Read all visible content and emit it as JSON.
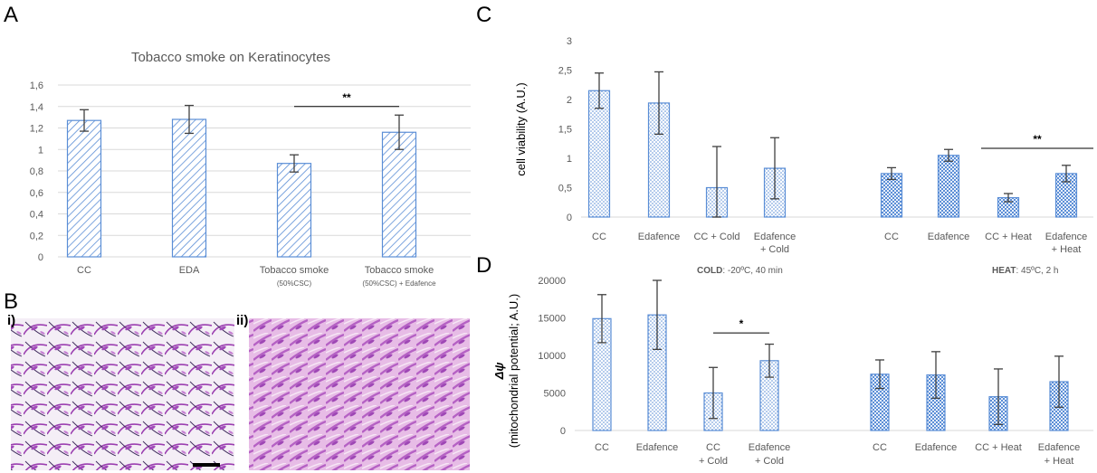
{
  "figure": {
    "panels": {
      "A": "A",
      "B": "B",
      "C": "C",
      "D": "D"
    },
    "micrographs": {
      "i": "i)",
      "ii": "ii)"
    },
    "notes": {
      "cold_bold": "COLD",
      "cold_rest": ": -20ºC, 40 min",
      "heat_bold": "HEAT",
      "heat_rest": ": 45ºC, 2 h"
    }
  },
  "colors": {
    "bar": "#5B8ED6",
    "axis": "#D9D9D9",
    "error": "#404040",
    "tissue": "#C17ACB"
  },
  "chart_data": [
    {
      "id": "A",
      "type": "bar",
      "title": "Tobacco smoke on Keratinocytes",
      "ylabel": "",
      "xlabel": "",
      "ylim": [
        0,
        1.6
      ],
      "yticks": [
        "0",
        "0,2",
        "0,4",
        "0,6",
        "0,8",
        "1",
        "1,2",
        "1,4",
        "1,6"
      ],
      "grid": true,
      "fill": "hatch",
      "categories": [
        {
          "line1": "CC",
          "line2": ""
        },
        {
          "line1": "EDA",
          "line2": ""
        },
        {
          "line1": "Tobacco smoke",
          "line2": "(50%CSC)"
        },
        {
          "line1": "Tobacco smoke",
          "line2": "(50%CSC) + Edafence"
        }
      ],
      "values": [
        1.27,
        1.28,
        0.87,
        1.16
      ],
      "errors": [
        0.1,
        0.13,
        0.08,
        0.16
      ],
      "significance": [
        {
          "from": 2,
          "to": 3,
          "label": "**",
          "y": 1.4
        }
      ]
    },
    {
      "id": "C",
      "type": "bar",
      "title": "",
      "ylabel": "cell viability (A.U.)",
      "xlabel": "",
      "ylim": [
        0,
        3
      ],
      "yticks": [
        "0",
        "0,5",
        "1",
        "1,5",
        "2",
        "2,5",
        "3"
      ],
      "grid": false,
      "groups": [
        {
          "fill": "dots",
          "categories": [
            {
              "line1": "CC",
              "line2": ""
            },
            {
              "line1": "Edafence",
              "line2": ""
            },
            {
              "line1": "CC + Cold",
              "line2": ""
            },
            {
              "line1": "Edafence",
              "line2": "+ Cold"
            }
          ],
          "values": [
            2.15,
            1.94,
            0.5,
            0.83
          ],
          "errors": [
            0.3,
            0.53,
            0.7,
            0.52
          ]
        },
        {
          "fill": "checker",
          "categories": [
            {
              "line1": "CC",
              "line2": ""
            },
            {
              "line1": "Edafence",
              "line2": ""
            },
            {
              "line1": "CC + Heat",
              "line2": ""
            },
            {
              "line1": "Edafence",
              "line2": "+ Heat"
            }
          ],
          "values": [
            0.74,
            1.05,
            0.33,
            0.74
          ],
          "errors": [
            0.1,
            0.1,
            0.07,
            0.14
          ]
        }
      ],
      "significance": [
        {
          "group": 1,
          "from": 2,
          "to": 3,
          "label": "**",
          "y": 1.17
        }
      ]
    },
    {
      "id": "D",
      "type": "bar",
      "title": "",
      "ylabel_symbol": "Δψ",
      "ylabel": "(mitochondrial potential; A.U.)",
      "xlabel": "",
      "ylim": [
        0,
        20000
      ],
      "yticks": [
        "0",
        "5000",
        "10000",
        "15000",
        "20000"
      ],
      "grid": false,
      "groups": [
        {
          "fill": "dots",
          "categories": [
            {
              "line1": "CC",
              "line2": ""
            },
            {
              "line1": "Edafence",
              "line2": ""
            },
            {
              "line1": "CC",
              "line2": "+ Cold"
            },
            {
              "line1": "Edafence",
              "line2": "+ Cold"
            }
          ],
          "values": [
            14900,
            15400,
            5000,
            9300
          ],
          "errors": [
            3200,
            4600,
            3400,
            2200
          ]
        },
        {
          "fill": "checker",
          "categories": [
            {
              "line1": "CC",
              "line2": ""
            },
            {
              "line1": "Edafence",
              "line2": ""
            },
            {
              "line1": "CC + Heat",
              "line2": ""
            },
            {
              "line1": "Edafence",
              "line2": "+ Heat"
            }
          ],
          "values": [
            7500,
            7400,
            4500,
            6500
          ],
          "errors": [
            1900,
            3100,
            3700,
            3400
          ]
        }
      ],
      "significance": [
        {
          "group": 0,
          "from": 2,
          "to": 3,
          "label": "*",
          "y": 13000
        }
      ]
    }
  ]
}
